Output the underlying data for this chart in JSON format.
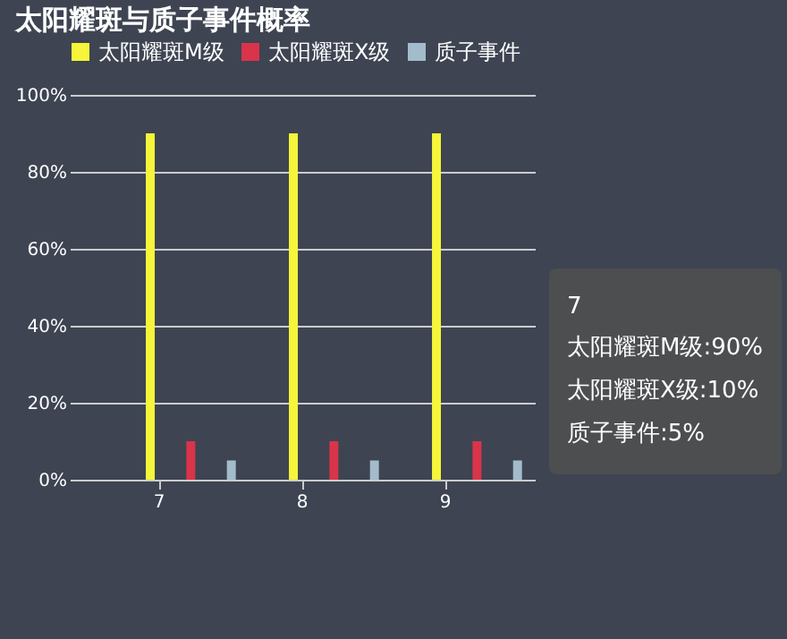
{
  "chart_data": {
    "type": "bar",
    "title": "太阳耀斑与质子事件概率",
    "categories": [
      "7",
      "8",
      "9"
    ],
    "series": [
      {
        "name": "太阳耀斑M级",
        "color": "#f5f53a",
        "values": [
          90,
          90,
          90
        ]
      },
      {
        "name": "太阳耀斑X级",
        "color": "#d9344a",
        "values": [
          10,
          10,
          10
        ]
      },
      {
        "name": "质子事件",
        "color": "#a3bccb",
        "values": [
          5,
          5,
          5
        ]
      }
    ],
    "ylim": [
      0,
      100
    ],
    "yticks": [
      {
        "value": 0,
        "label": "0%"
      },
      {
        "value": 20,
        "label": "20%"
      },
      {
        "value": 40,
        "label": "40%"
      },
      {
        "value": 60,
        "label": "60%"
      },
      {
        "value": 80,
        "label": "80%"
      },
      {
        "value": 100,
        "label": "100%"
      }
    ],
    "grid": "y",
    "legend": "top",
    "annotations": [
      "7",
      "太阳耀斑M级:90%",
      "太阳耀斑X级:10%",
      "质子事件:5%"
    ]
  }
}
